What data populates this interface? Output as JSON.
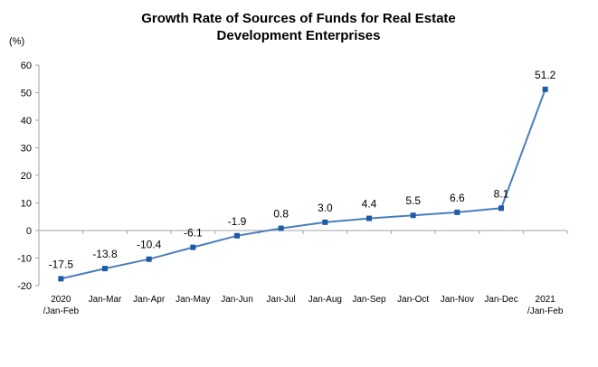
{
  "chart_data": {
    "type": "line",
    "title_lines": [
      "Growth Rate of Sources of Funds for Real Estate",
      "Development Enterprises"
    ],
    "y_unit": "(%)",
    "ylim": [
      -20,
      60
    ],
    "yticks": [
      "60",
      "50",
      "40",
      "30",
      "20",
      "10",
      "0",
      "-10",
      "-20"
    ],
    "ytick_values": [
      60,
      50,
      40,
      30,
      20,
      10,
      0,
      -10,
      -20
    ],
    "grid": false,
    "legend": "none",
    "categories": [
      [
        "2020",
        "/Jan-Feb"
      ],
      [
        "Jan-Mar"
      ],
      [
        "Jan-Apr"
      ],
      [
        "Jan-May"
      ],
      [
        "Jan-Jun"
      ],
      [
        "Jan-Jul"
      ],
      [
        "Jan-Aug"
      ],
      [
        "Jan-Sep"
      ],
      [
        "Jan-Oct"
      ],
      [
        "Jan-Nov"
      ],
      [
        "Jan-Dec"
      ],
      [
        "2021",
        "/Jan-Feb"
      ]
    ],
    "values": [
      -17.5,
      -13.8,
      -10.4,
      -6.1,
      -1.9,
      0.8,
      3.0,
      4.4,
      5.5,
      6.6,
      8.1,
      51.2
    ],
    "data_labels": [
      "-17.5",
      "-13.8",
      "-10.4",
      "-6.1",
      "-1.9",
      "0.8",
      "3.0",
      "4.4",
      "5.5",
      "6.6",
      "8.1",
      "51.2"
    ],
    "line_color": "#4A7EBB",
    "marker_color": "#1F5AA6",
    "axis_color": "#A6A6A6"
  }
}
